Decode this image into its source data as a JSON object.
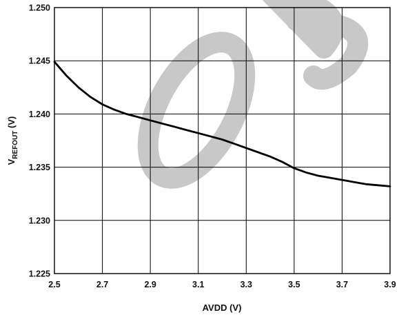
{
  "chart_data": {
    "type": "line",
    "title": "",
    "xlabel": "AVDD (V)",
    "ylabel": {
      "main": "V",
      "subscript": "REFOUT",
      "unit": " (V)"
    },
    "xlim": [
      2.5,
      3.9
    ],
    "ylim": [
      1.225,
      1.25
    ],
    "x_ticks": [
      "2.5",
      "2.7",
      "2.9",
      "3.1",
      "3.3",
      "3.5",
      "3.7",
      "3.9"
    ],
    "y_ticks": [
      "1.225",
      "1.230",
      "1.235",
      "1.240",
      "1.245",
      "1.250"
    ],
    "grid": true,
    "watermark": "OBSOLETE",
    "series": [
      {
        "color": "#000000",
        "x": [
          2.5,
          2.55,
          2.6,
          2.65,
          2.7,
          2.75,
          2.8,
          2.85,
          2.9,
          2.95,
          3.0,
          3.05,
          3.1,
          3.15,
          3.2,
          3.25,
          3.3,
          3.35,
          3.4,
          3.45,
          3.5,
          3.55,
          3.6,
          3.65,
          3.7,
          3.75,
          3.8,
          3.85,
          3.9
        ],
        "y": [
          1.2449,
          1.2436,
          1.2425,
          1.2416,
          1.2409,
          1.2404,
          1.24,
          1.2397,
          1.2394,
          1.2391,
          1.2388,
          1.2385,
          1.2382,
          1.2379,
          1.2376,
          1.2372,
          1.2368,
          1.2364,
          1.236,
          1.2355,
          1.2349,
          1.2345,
          1.2342,
          1.234,
          1.2338,
          1.2336,
          1.2334,
          1.2333,
          1.2332
        ]
      }
    ]
  }
}
